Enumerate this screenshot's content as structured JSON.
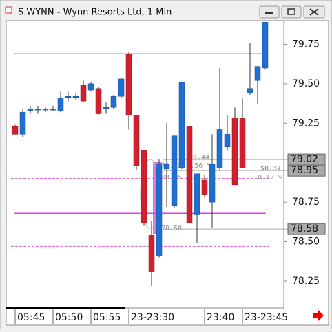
{
  "chart_data": {
    "type": "candlestick",
    "title": "S.WYNN - Wynn Resorts Ltd, 1 Min",
    "categories": [
      "05:45",
      null,
      null,
      null,
      null,
      "05:50",
      null,
      null,
      null,
      null,
      "05:55",
      null,
      null,
      null,
      null,
      "23-23:30",
      null,
      null,
      null,
      null,
      null,
      null,
      null,
      null,
      null,
      "23:40",
      null,
      null,
      null,
      null,
      "23-23:45",
      null,
      null,
      null
    ],
    "open": [
      79.23,
      79.18,
      79.33,
      79.34,
      79.34,
      79.34,
      79.33,
      79.42,
      79.42,
      79.49,
      79.46,
      79.47,
      79.35,
      79.35,
      79.42,
      79.69,
      79.3,
      79.08,
      78.54,
      78.41,
      78.96,
      78.73,
      78.97,
      79.23,
      78.67,
      78.89,
      78.75,
      78.97,
      79.1,
      79.28,
      79.28,
      79.44,
      79.52,
      79.6
    ],
    "high": [
      79.24,
      79.34,
      79.36,
      79.36,
      79.35,
      79.36,
      79.45,
      79.45,
      79.44,
      79.52,
      79.51,
      79.48,
      79.38,
      79.43,
      79.54,
      79.7,
      79.3,
      79.08,
      78.63,
      79.02,
      79.25,
      79.17,
      79.51,
      79.23,
      78.93,
      78.92,
      79.18,
      79.6,
      79.3,
      79.35,
      79.41,
      79.76,
      79.61,
      79.89
    ],
    "low": [
      79.18,
      79.16,
      79.31,
      79.31,
      79.32,
      79.33,
      79.32,
      79.39,
      79.4,
      79.38,
      79.45,
      79.3,
      79.31,
      79.34,
      79.41,
      79.21,
      78.95,
      78.6,
      78.22,
      78.4,
      78.72,
      78.71,
      78.96,
      78.62,
      78.49,
      78.78,
      78.59,
      78.95,
      79.08,
      78.86,
      78.97,
      79.43,
      79.37,
      79.59
    ],
    "close": [
      79.18,
      79.32,
      79.34,
      79.34,
      79.34,
      79.34,
      79.41,
      79.42,
      79.42,
      79.39,
      79.5,
      79.31,
      79.35,
      79.42,
      79.53,
      79.3,
      78.98,
      78.62,
      78.31,
      78.99,
      78.99,
      79.17,
      79.51,
      78.62,
      78.93,
      78.8,
      78.99,
      79.21,
      79.18,
      78.86,
      78.97,
      79.47,
      79.61,
      79.89
    ],
    "up_color": "#1f6fd1",
    "down_color": "#d11f2b",
    "ylim": [
      78.08,
      79.9
    ],
    "yticks": [
      78.25,
      {
        "value": 78.5,
        "label": "78.50"
      },
      78.75,
      79.25,
      {
        "value": 79.5,
        "label": "79.50"
      },
      79.75
    ],
    "price_tags": [
      79.02,
      78.95,
      78.58
    ],
    "levels": [
      {
        "value": 79.69,
        "color": "#999999",
        "style": "solid"
      },
      {
        "value": 78.9,
        "color": "#e060d0",
        "style": "dashed"
      },
      {
        "value": 78.68,
        "color": "#e040e0",
        "style": "solid"
      },
      {
        "value": 78.47,
        "color": "#e060d0",
        "style": "dashed"
      }
    ],
    "annotations": [
      "$0.44",
      "79.02 0.56 %",
      "78.95",
      "78.58",
      "$0.37",
      "0.47 %"
    ]
  }
}
